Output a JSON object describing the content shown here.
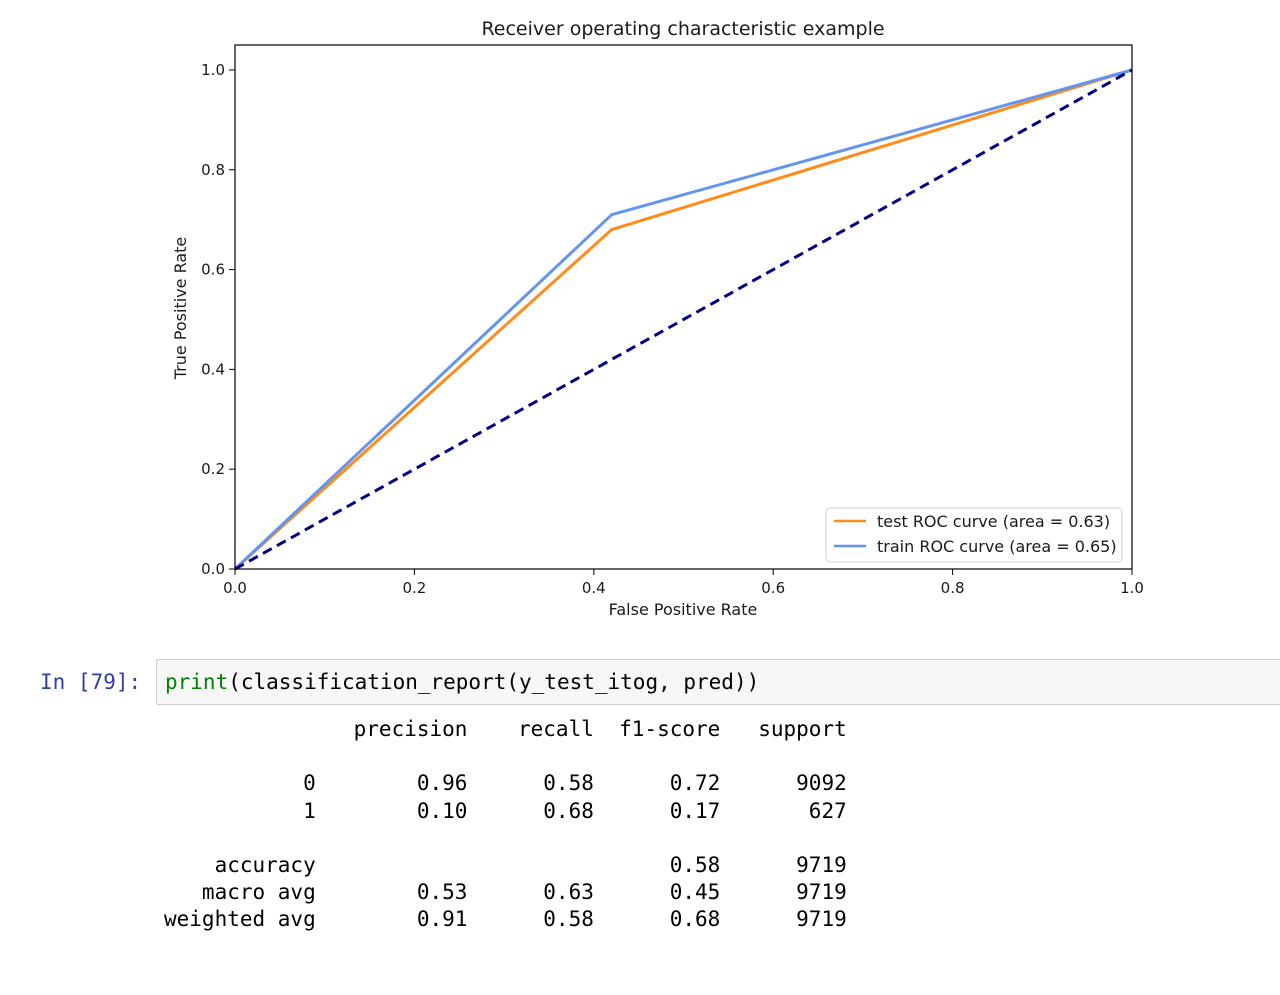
{
  "chart_data": {
    "type": "line",
    "title": "Receiver operating characteristic example",
    "xlabel": "False Positive Rate",
    "ylabel": "True Positive Rate",
    "xlim": [
      0.0,
      1.0
    ],
    "ylim": [
      0.0,
      1.05
    ],
    "xticks": [
      "0.0",
      "0.2",
      "0.4",
      "0.6",
      "0.8",
      "1.0"
    ],
    "yticks": [
      "0.0",
      "0.2",
      "0.4",
      "0.6",
      "0.8",
      "1.0"
    ],
    "grid": false,
    "legend_position": "lower-right",
    "series": [
      {
        "name": "test ROC curve (area = 0.63)",
        "color": "#ff8c1a",
        "x": [
          0.0,
          0.42,
          1.0
        ],
        "y": [
          0.0,
          0.68,
          1.0
        ]
      },
      {
        "name": "train ROC curve (area = 0.65)",
        "color": "#6495ed",
        "x": [
          0.0,
          0.42,
          1.0
        ],
        "y": [
          0.0,
          0.71,
          1.0
        ]
      },
      {
        "name": "",
        "color": "#000080",
        "style": "dashed",
        "x": [
          0.0,
          1.0
        ],
        "y": [
          0.0,
          1.0
        ]
      }
    ]
  },
  "cell": {
    "prompt": "In [79]:",
    "code_builtin": "print",
    "code_rest": "(classification_report(y_test_itog, pred))"
  },
  "report": {
    "header": [
      "precision",
      "recall",
      "f1-score",
      "support"
    ],
    "rows": [
      {
        "label": "0",
        "precision": "0.96",
        "recall": "0.58",
        "f1": "0.72",
        "support": "9092"
      },
      {
        "label": "1",
        "precision": "0.10",
        "recall": "0.68",
        "f1": "0.17",
        "support": "627"
      },
      {
        "label": "accuracy",
        "precision": "",
        "recall": "",
        "f1": "0.58",
        "support": "9719"
      },
      {
        "label": "macro avg",
        "precision": "0.53",
        "recall": "0.63",
        "f1": "0.45",
        "support": "9719"
      },
      {
        "label": "weighted avg",
        "precision": "0.91",
        "recall": "0.58",
        "f1": "0.68",
        "support": "9719"
      }
    ]
  }
}
